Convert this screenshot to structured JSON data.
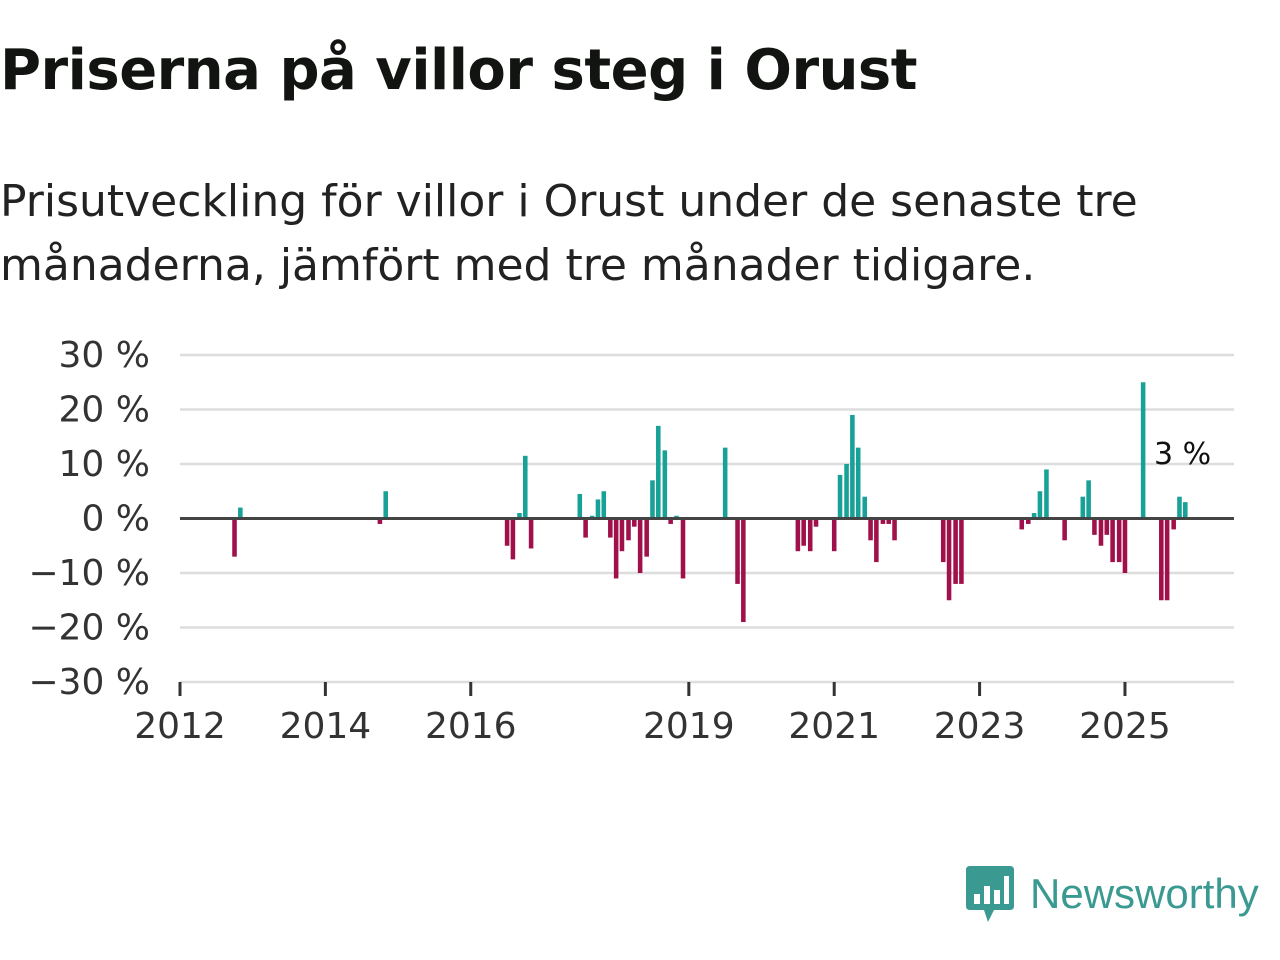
{
  "header": {
    "title": "Priserna på villor steg i Orust",
    "subtitle": "Prisutveckling för villor i Orust under de senaste tre månaderna, jämfört med tre månader tidigare."
  },
  "brand": {
    "name": "Newsworthy"
  },
  "colors": {
    "positive": "#17a197",
    "negative": "#a0104a",
    "grid": "#dddddd",
    "axis": "#444444"
  },
  "chart_data": {
    "type": "bar",
    "title": "Priserna på villor steg i Orust",
    "ylabel": "",
    "xlabel": "",
    "ylim": [
      -30,
      30
    ],
    "yticks": [
      30,
      20,
      10,
      0,
      -10,
      -20,
      -30
    ],
    "ytick_labels": [
      "30 %",
      "20 %",
      "10 %",
      "0 %",
      "−10 %",
      "−20 %",
      "−30 %"
    ],
    "xlim": [
      2012.0,
      2026.5
    ],
    "xticks": [
      2012,
      2014,
      2016,
      2019,
      2021,
      2023,
      2025
    ],
    "xtick_labels": [
      "2012",
      "2014",
      "2016",
      "2019",
      "2021",
      "2023",
      "2025"
    ],
    "annotation": {
      "label": "3 %",
      "x": 2025.8,
      "value": 3
    },
    "series": [
      {
        "name": "Prisutveckling",
        "points": [
          {
            "x": 2012.75,
            "value": -7
          },
          {
            "x": 2012.83,
            "value": 2
          },
          {
            "x": 2014.75,
            "value": -1
          },
          {
            "x": 2014.83,
            "value": 5
          },
          {
            "x": 2016.5,
            "value": -5
          },
          {
            "x": 2016.58,
            "value": -7.5
          },
          {
            "x": 2016.67,
            "value": 1
          },
          {
            "x": 2016.75,
            "value": 11.5
          },
          {
            "x": 2016.83,
            "value": -5.5
          },
          {
            "x": 2017.5,
            "value": 4.5
          },
          {
            "x": 2017.58,
            "value": -3.5
          },
          {
            "x": 2017.67,
            "value": 0.5
          },
          {
            "x": 2017.75,
            "value": 3.5
          },
          {
            "x": 2017.83,
            "value": 5
          },
          {
            "x": 2017.92,
            "value": -3.5
          },
          {
            "x": 2018.0,
            "value": -11
          },
          {
            "x": 2018.08,
            "value": -6
          },
          {
            "x": 2018.17,
            "value": -4
          },
          {
            "x": 2018.25,
            "value": -1.5
          },
          {
            "x": 2018.33,
            "value": -10
          },
          {
            "x": 2018.42,
            "value": -7
          },
          {
            "x": 2018.5,
            "value": 7
          },
          {
            "x": 2018.58,
            "value": 17
          },
          {
            "x": 2018.67,
            "value": 12.5
          },
          {
            "x": 2018.75,
            "value": -1
          },
          {
            "x": 2018.83,
            "value": 0.5
          },
          {
            "x": 2018.92,
            "value": -11
          },
          {
            "x": 2019.5,
            "value": 13
          },
          {
            "x": 2019.67,
            "value": -12
          },
          {
            "x": 2019.75,
            "value": -19
          },
          {
            "x": 2020.5,
            "value": -6
          },
          {
            "x": 2020.58,
            "value": -5
          },
          {
            "x": 2020.67,
            "value": -6
          },
          {
            "x": 2020.75,
            "value": -1.5
          },
          {
            "x": 2021.0,
            "value": -6
          },
          {
            "x": 2021.08,
            "value": 8
          },
          {
            "x": 2021.17,
            "value": 10
          },
          {
            "x": 2021.25,
            "value": 19
          },
          {
            "x": 2021.33,
            "value": 13
          },
          {
            "x": 2021.42,
            "value": 4
          },
          {
            "x": 2021.5,
            "value": -4
          },
          {
            "x": 2021.58,
            "value": -8
          },
          {
            "x": 2021.67,
            "value": -1
          },
          {
            "x": 2021.75,
            "value": -1
          },
          {
            "x": 2021.83,
            "value": -4
          },
          {
            "x": 2022.5,
            "value": -8
          },
          {
            "x": 2022.58,
            "value": -15
          },
          {
            "x": 2022.67,
            "value": -12
          },
          {
            "x": 2022.75,
            "value": -12
          },
          {
            "x": 2023.58,
            "value": -2
          },
          {
            "x": 2023.67,
            "value": -1
          },
          {
            "x": 2023.75,
            "value": 1
          },
          {
            "x": 2023.83,
            "value": 5
          },
          {
            "x": 2023.92,
            "value": 9
          },
          {
            "x": 2024.17,
            "value": -4
          },
          {
            "x": 2024.42,
            "value": 4
          },
          {
            "x": 2024.5,
            "value": 7
          },
          {
            "x": 2024.58,
            "value": -3
          },
          {
            "x": 2024.67,
            "value": -5
          },
          {
            "x": 2024.75,
            "value": -3
          },
          {
            "x": 2024.83,
            "value": -8
          },
          {
            "x": 2024.92,
            "value": -8
          },
          {
            "x": 2025.0,
            "value": -10
          },
          {
            "x": 2025.25,
            "value": 25
          },
          {
            "x": 2025.5,
            "value": -15
          },
          {
            "x": 2025.58,
            "value": -15
          },
          {
            "x": 2025.67,
            "value": -2
          },
          {
            "x": 2025.75,
            "value": 4
          },
          {
            "x": 2025.83,
            "value": 3
          }
        ]
      }
    ]
  }
}
